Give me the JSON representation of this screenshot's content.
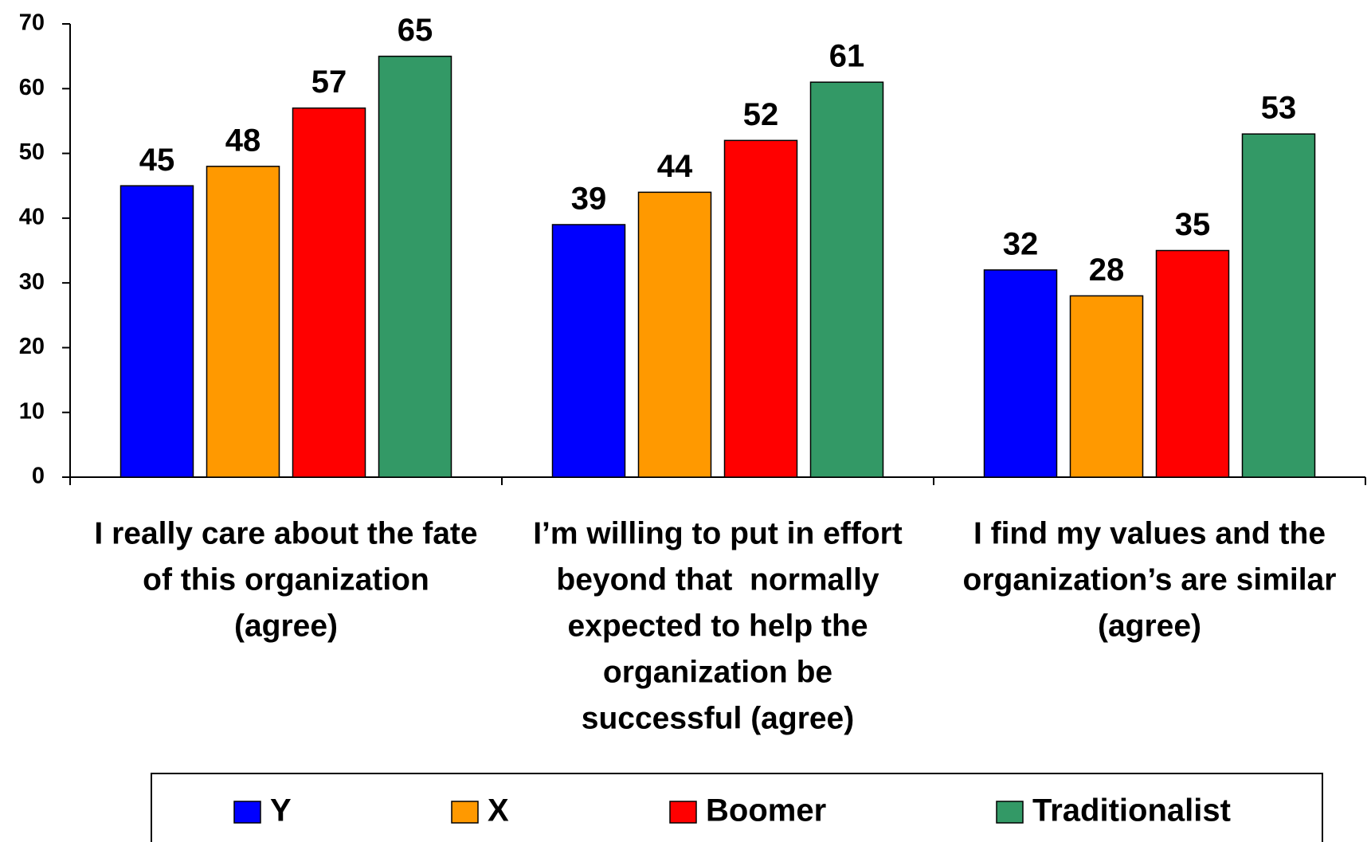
{
  "chart_data": {
    "type": "bar",
    "categories": [
      [
        "I really care about the fate",
        "of this organization",
        "(agree)"
      ],
      [
        "I’m willing to put in effort",
        "beyond that  normally",
        "expected to help the",
        "organization be",
        "successful (agree)"
      ],
      [
        "I find my values and the",
        "organization’s are similar",
        "(agree)"
      ]
    ],
    "series": [
      {
        "name": "Y",
        "color": "#0000ff",
        "values": [
          45,
          39,
          32
        ]
      },
      {
        "name": "X",
        "color": "#ff9900",
        "values": [
          48,
          44,
          28
        ]
      },
      {
        "name": "Boomer",
        "color": "#ff0000",
        "values": [
          57,
          52,
          35
        ]
      },
      {
        "name": "Traditionalist",
        "color": "#339966",
        "values": [
          65,
          61,
          53
        ]
      }
    ],
    "ylim": [
      0,
      70
    ],
    "yticks": [
      0,
      10,
      20,
      30,
      40,
      50,
      60,
      70
    ],
    "grid": false,
    "legend": "bottom"
  }
}
